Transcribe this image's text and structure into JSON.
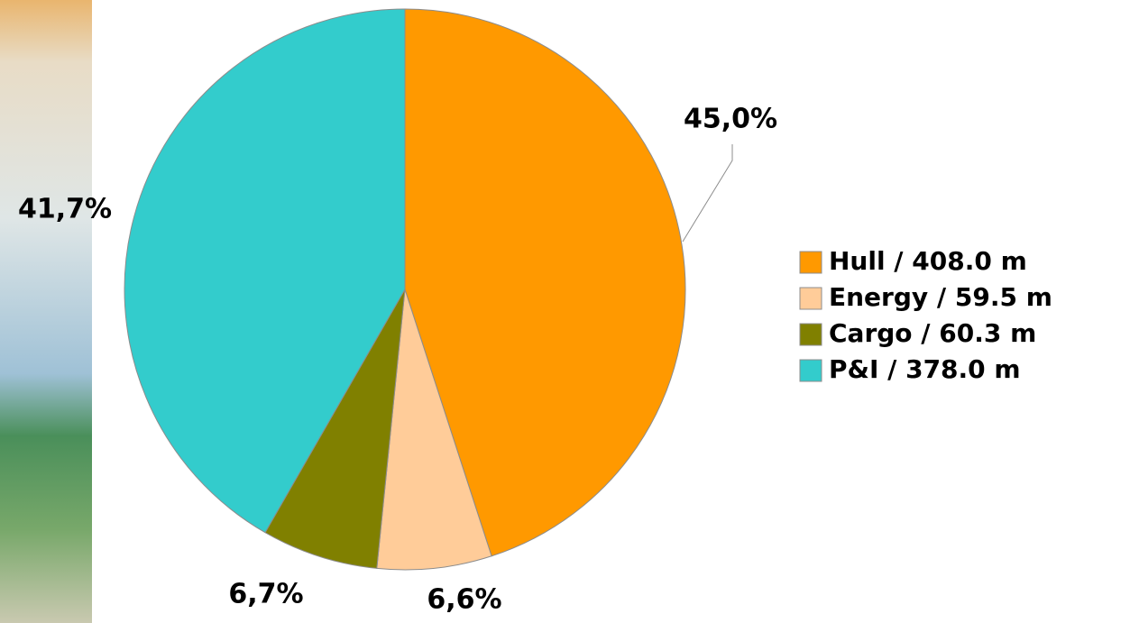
{
  "chart_data": {
    "type": "pie",
    "categories": [
      "Hull / 408.0 m",
      "Energy / 59.5 m",
      "Cargo / 60.3 m",
      "P&I / 378.0 m"
    ],
    "values": [
      45.0,
      6.6,
      6.7,
      41.7
    ],
    "value_labels": [
      "45,0%",
      "6,6%",
      "6,7%",
      "41,7%"
    ],
    "colors": [
      "#ff9900",
      "#ffcc99",
      "#808000",
      "#33cccc"
    ],
    "legend": "right"
  }
}
